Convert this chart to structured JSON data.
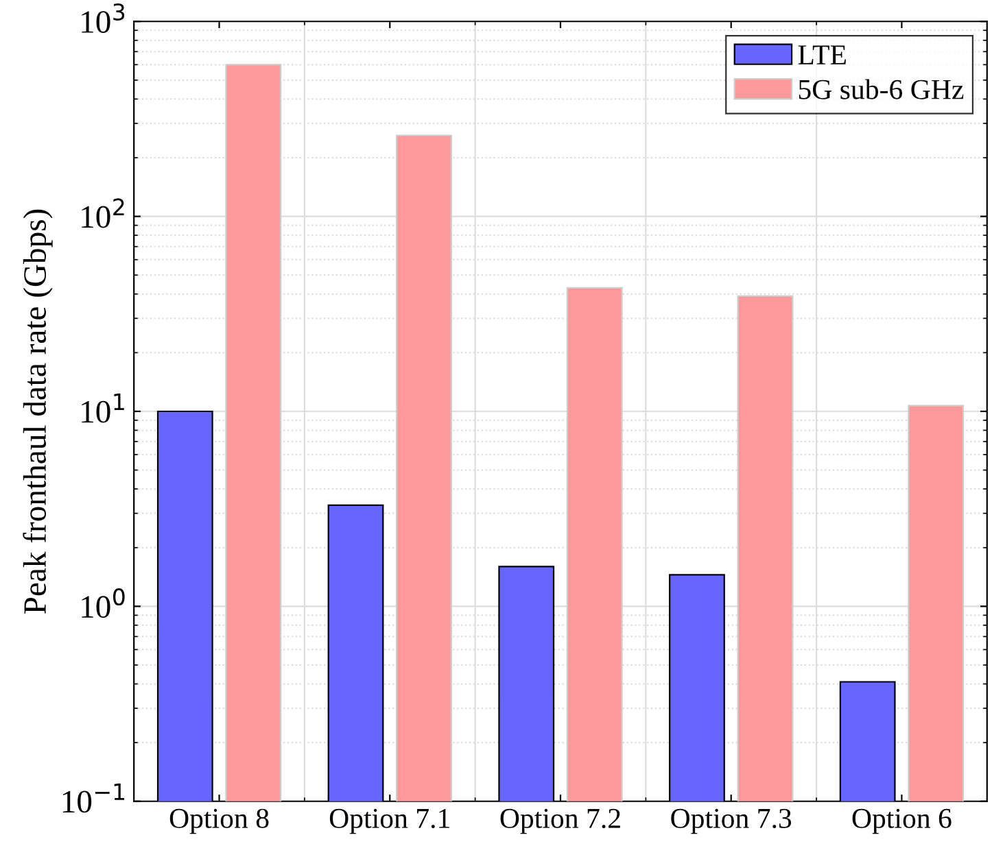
{
  "chart_data": {
    "type": "bar",
    "ylabel": "Peak fronthaul data rate (Gbps)",
    "categories": [
      "Option 8",
      "Option 7.1",
      "Option 7.2",
      "Option 7.3",
      "Option 6"
    ],
    "series": [
      {
        "name": "LTE",
        "color": "#6666ff",
        "values": [
          10,
          3.3,
          1.6,
          1.45,
          0.41
        ]
      },
      {
        "name": "5G sub-6 GHz",
        "color": "#ff9999",
        "values": [
          600,
          260,
          43,
          39,
          10.7
        ]
      }
    ],
    "log": true,
    "ylim": [
      0.1,
      1000
    ],
    "yticks": [
      {
        "value": 0.1,
        "label": "10$^{−1}$"
      },
      {
        "value": 1,
        "label": "10$^{0}$"
      },
      {
        "value": 10,
        "label": "10$^{1}$"
      },
      {
        "value": 100,
        "label": "10$^{2}$"
      },
      {
        "value": 1000,
        "label": "10$^{3}$"
      }
    ],
    "grid": true,
    "legend": "top right"
  }
}
